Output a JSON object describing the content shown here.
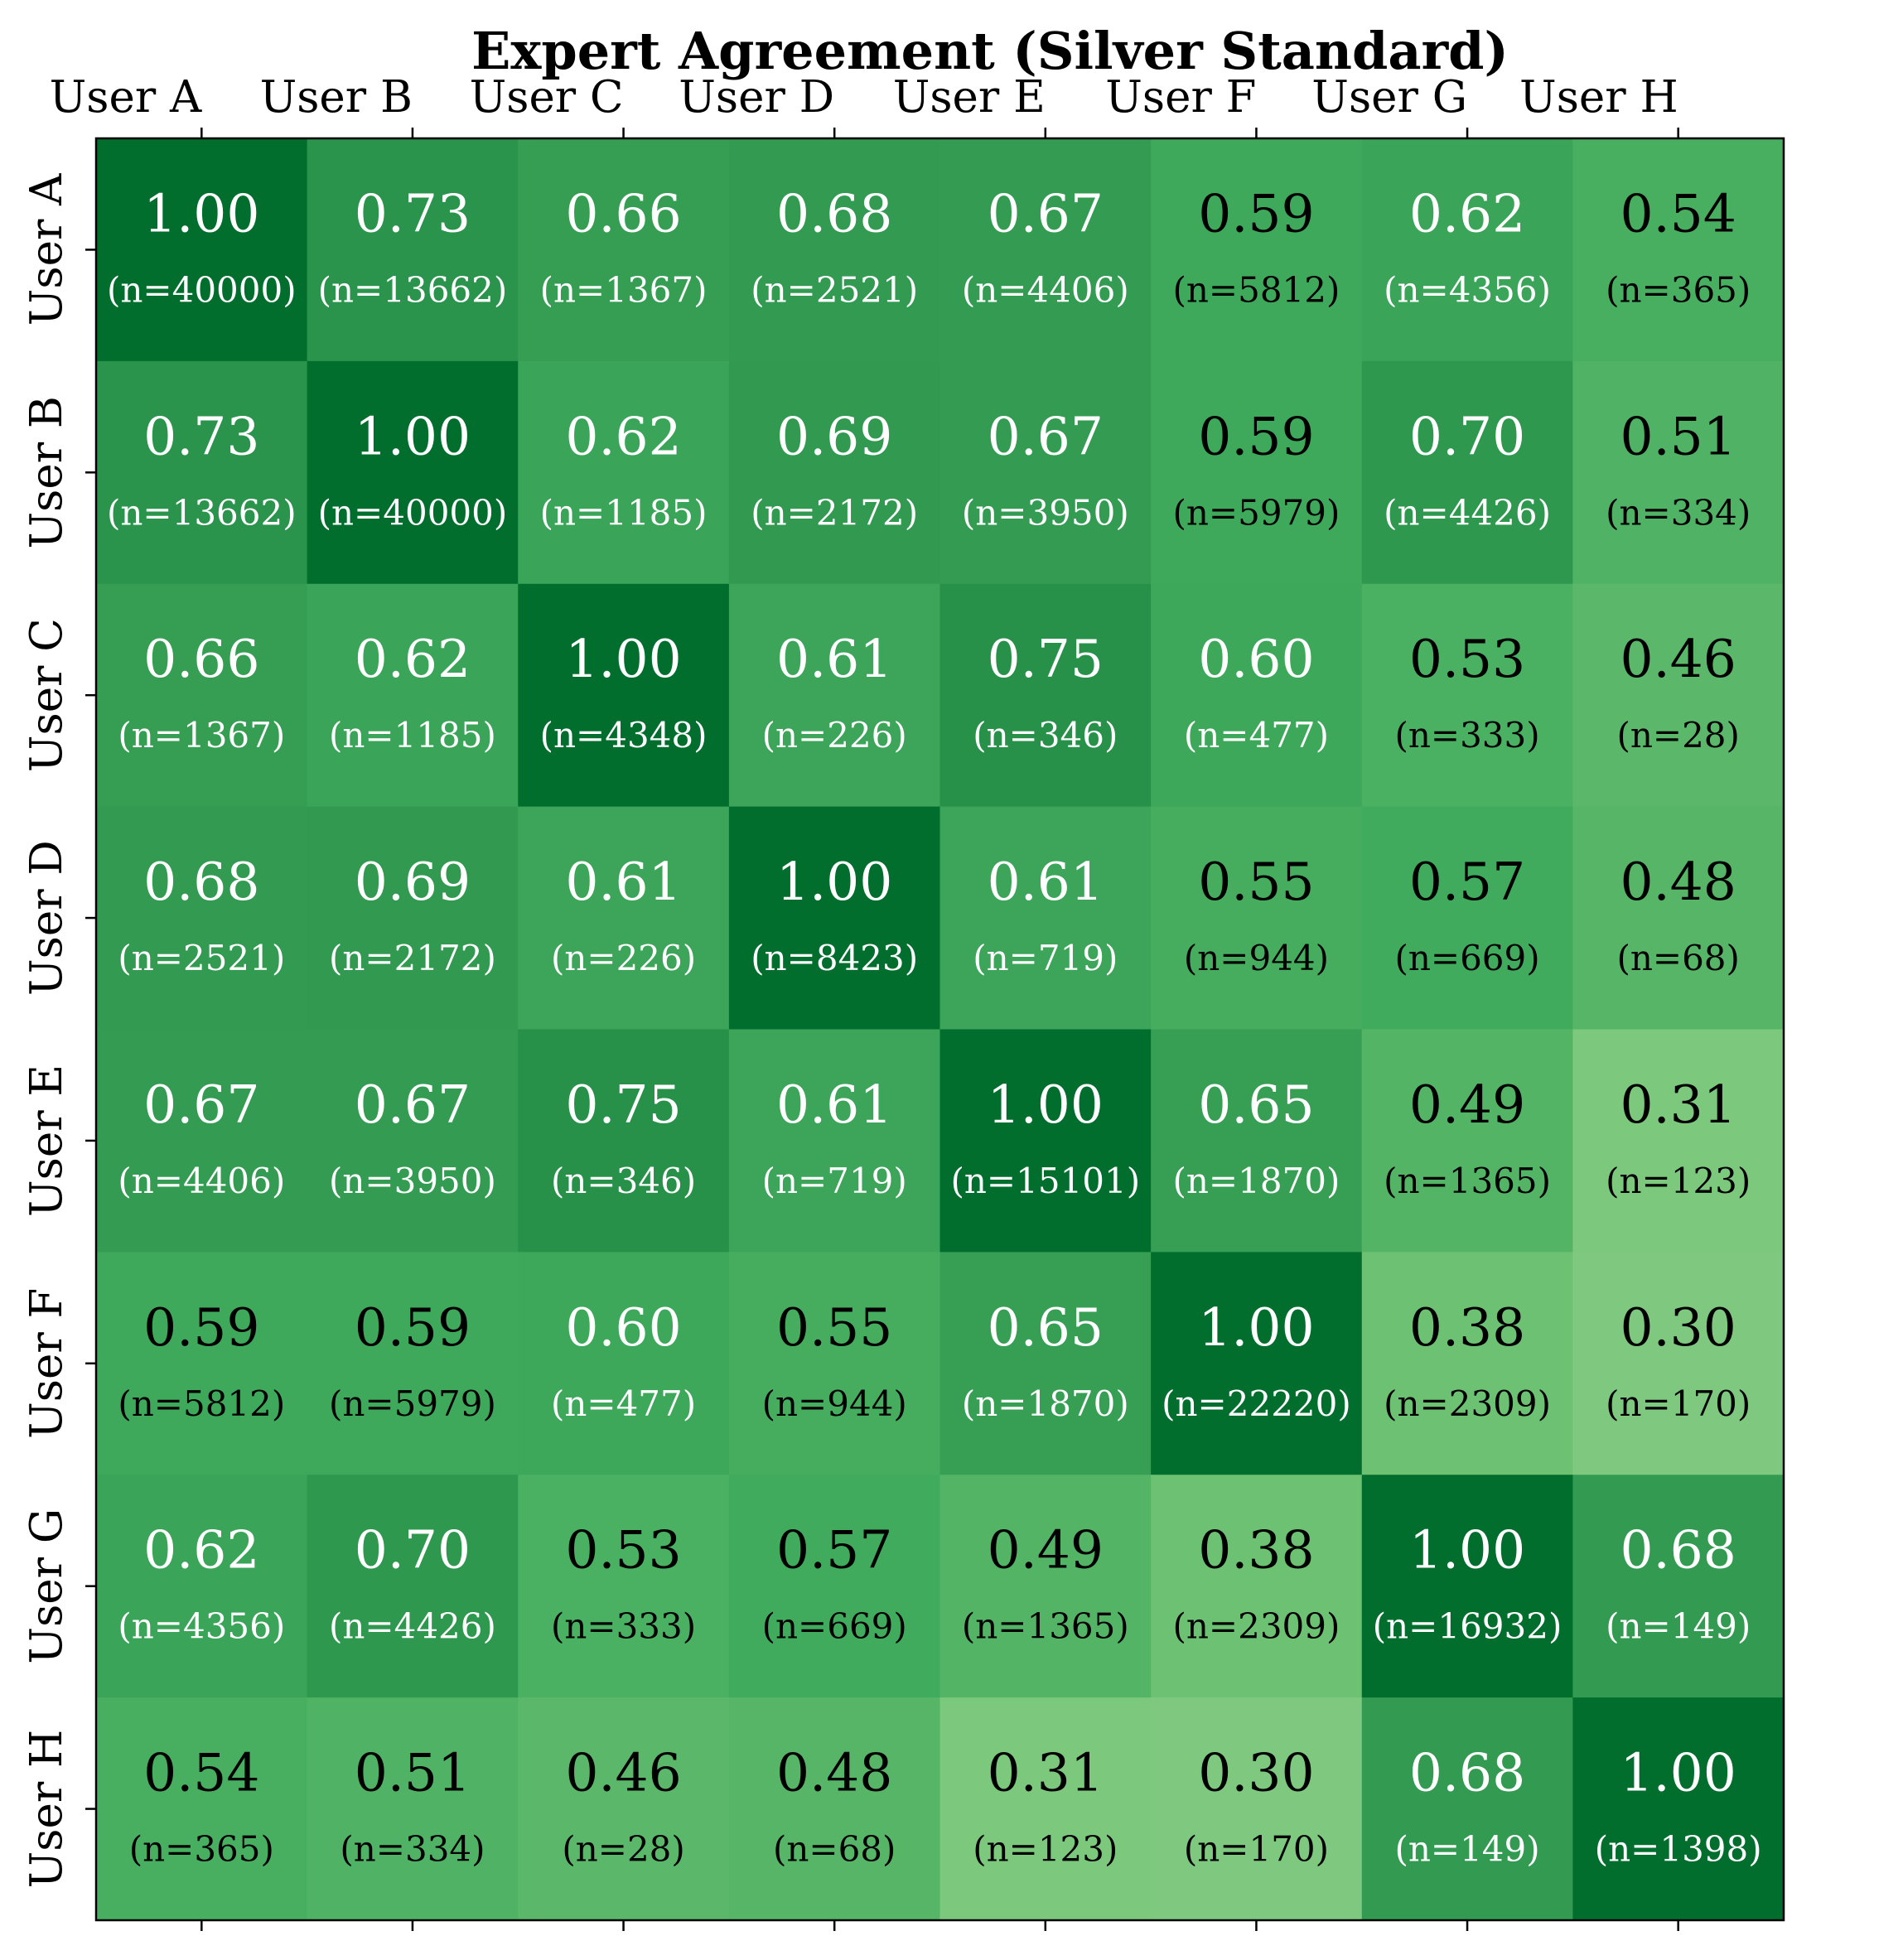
{
  "chart_data": {
    "type": "heatmap",
    "title": "Expert Agreement (Silver Standard)",
    "x_labels": [
      "User A",
      "User B",
      "User C",
      "User D",
      "User E",
      "User F",
      "User G",
      "User H"
    ],
    "y_labels": [
      "User A",
      "User B",
      "User C",
      "User D",
      "User E",
      "User F",
      "User G",
      "User H"
    ],
    "x_axis_position": "top",
    "colormap": "Greens",
    "value_range": [
      0,
      1
    ],
    "values": [
      [
        1.0,
        0.73,
        0.66,
        0.68,
        0.67,
        0.59,
        0.62,
        0.54
      ],
      [
        0.73,
        1.0,
        0.62,
        0.69,
        0.67,
        0.59,
        0.7,
        0.51
      ],
      [
        0.66,
        0.62,
        1.0,
        0.61,
        0.75,
        0.6,
        0.53,
        0.46
      ],
      [
        0.68,
        0.69,
        0.61,
        1.0,
        0.61,
        0.55,
        0.57,
        0.48
      ],
      [
        0.67,
        0.67,
        0.75,
        0.61,
        1.0,
        0.65,
        0.49,
        0.31
      ],
      [
        0.59,
        0.59,
        0.6,
        0.55,
        0.65,
        1.0,
        0.38,
        0.3
      ],
      [
        0.62,
        0.7,
        0.53,
        0.57,
        0.49,
        0.38,
        1.0,
        0.68
      ],
      [
        0.54,
        0.51,
        0.46,
        0.48,
        0.31,
        0.3,
        0.68,
        1.0
      ]
    ],
    "counts": [
      [
        40000,
        13662,
        1367,
        2521,
        4406,
        5812,
        4356,
        365
      ],
      [
        13662,
        40000,
        1185,
        2172,
        3950,
        5979,
        4426,
        334
      ],
      [
        1367,
        1185,
        4348,
        226,
        346,
        477,
        333,
        28
      ],
      [
        2521,
        2172,
        226,
        8423,
        719,
        944,
        669,
        68
      ],
      [
        4406,
        3950,
        346,
        719,
        15101,
        1870,
        1365,
        123
      ],
      [
        5812,
        5979,
        477,
        944,
        1870,
        22220,
        2309,
        170
      ],
      [
        4356,
        4426,
        333,
        669,
        1365,
        2309,
        16932,
        149
      ],
      [
        365,
        334,
        28,
        68,
        123,
        170,
        149,
        1398
      ]
    ]
  }
}
